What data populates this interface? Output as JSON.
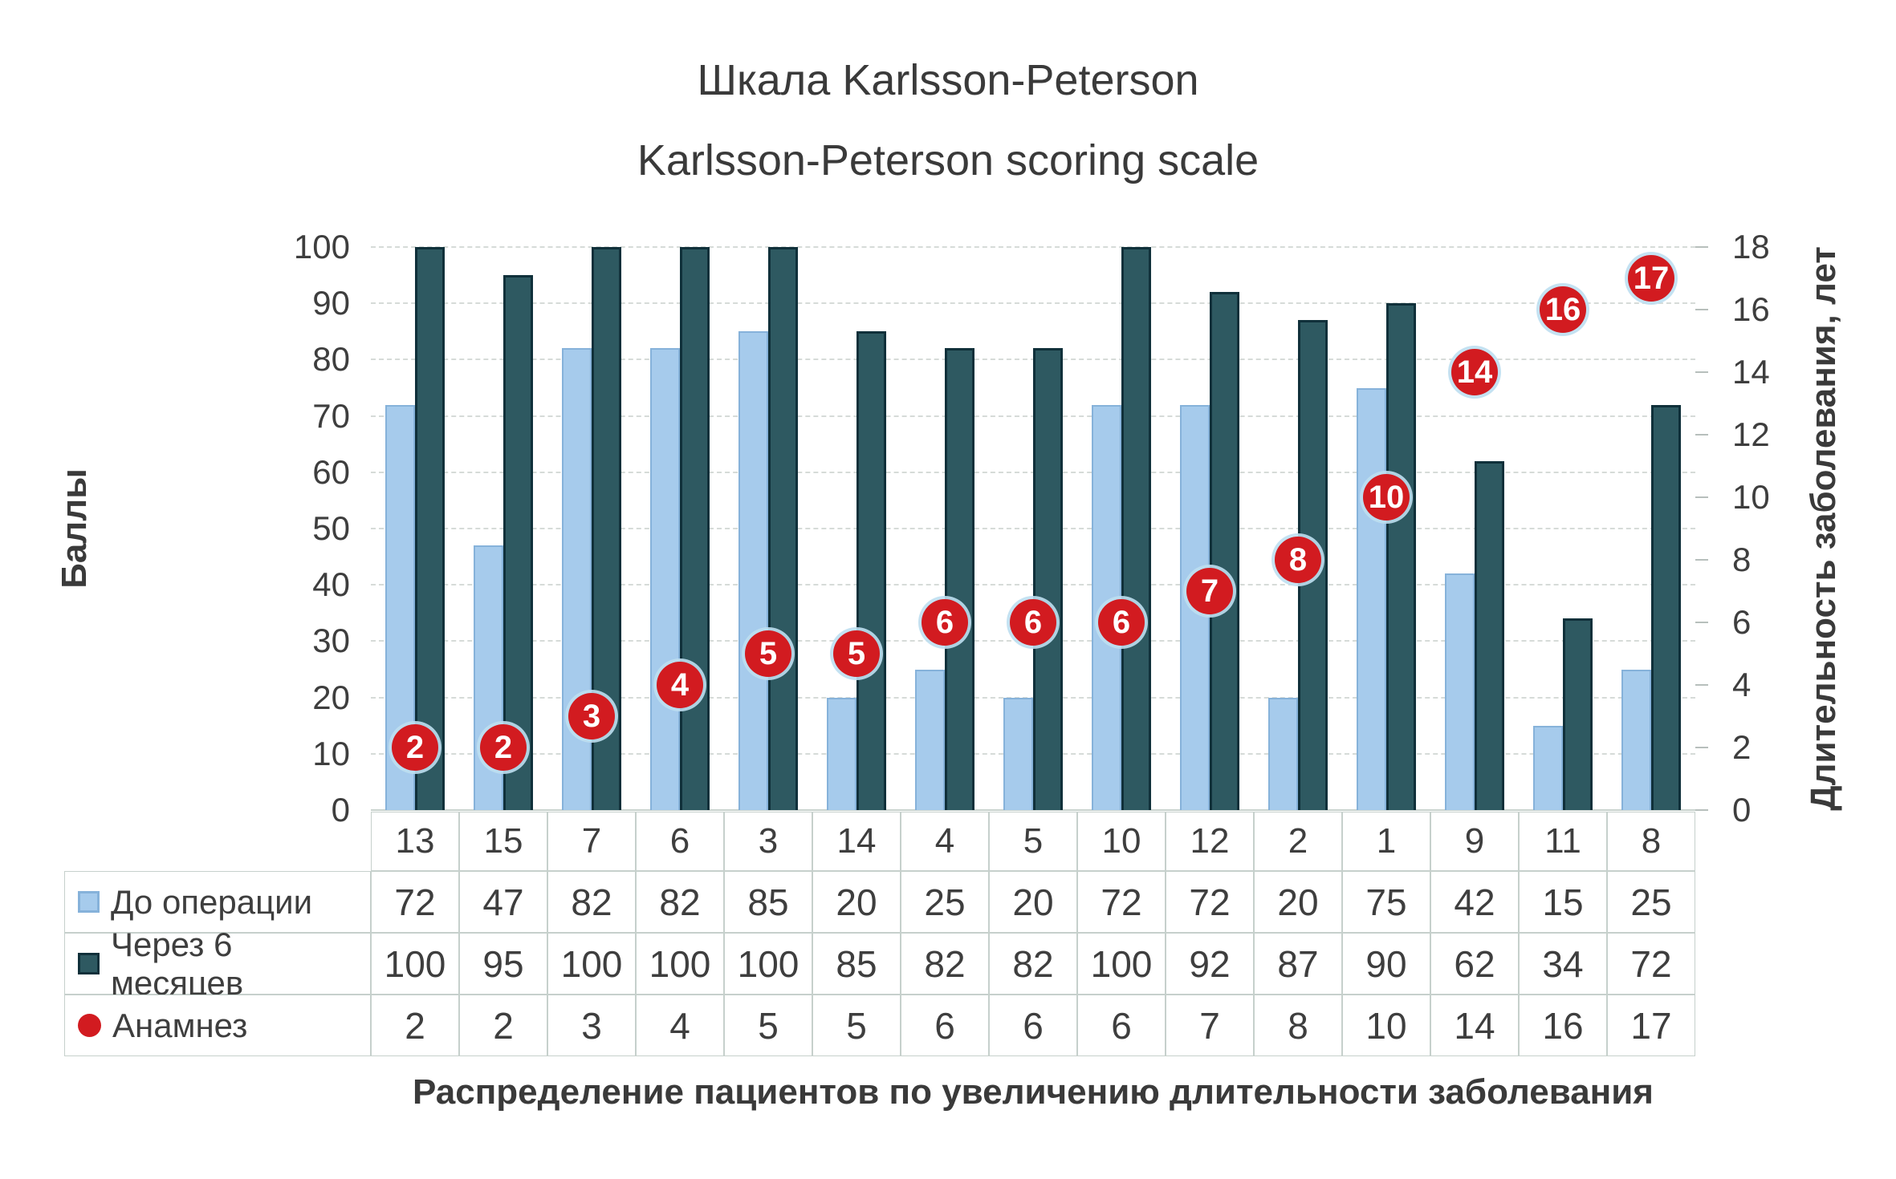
{
  "title": {
    "line1": "Шкала Karlsson-Peterson",
    "line2": "Karlsson-Peterson scoring scale"
  },
  "left_axis": {
    "title": "Баллы",
    "ticks": [
      100,
      90,
      80,
      70,
      60,
      50,
      40,
      30,
      20,
      10,
      0
    ],
    "min": 0,
    "max": 100
  },
  "right_axis": {
    "title": "Длительность заболевания, лет",
    "ticks": [
      18,
      16,
      14,
      12,
      10,
      8,
      6,
      4,
      2,
      0
    ],
    "min": 0,
    "max": 18
  },
  "chart_data": {
    "type": "bar",
    "title": "Шкала Karlsson-Peterson — Karlsson-Peterson scoring scale",
    "categories": [
      "13",
      "15",
      "7",
      "6",
      "3",
      "14",
      "4",
      "5",
      "10",
      "12",
      "2",
      "1",
      "9",
      "11",
      "8"
    ],
    "series": [
      {
        "name": "До операции",
        "type": "bar",
        "axis": "left",
        "color": "#a6cbec",
        "border_color": "#86b2da",
        "values": [
          72,
          47,
          82,
          82,
          85,
          20,
          25,
          20,
          72,
          72,
          20,
          75,
          42,
          15,
          25
        ]
      },
      {
        "name": "Через 6 месяцев",
        "type": "bar",
        "axis": "left",
        "color": "#2e5961",
        "border_color": "#10303a",
        "values": [
          100,
          95,
          100,
          100,
          100,
          85,
          82,
          82,
          100,
          92,
          87,
          90,
          62,
          34,
          72
        ]
      },
      {
        "name": "Анамнез",
        "type": "point",
        "axis": "right",
        "color": "#d21b20",
        "values": [
          2,
          2,
          3,
          4,
          5,
          5,
          6,
          6,
          6,
          7,
          8,
          10,
          14,
          16,
          17
        ]
      }
    ],
    "xlabel": "Распределение пациентов по увеличению длительности заболевания",
    "ylabel": "Баллы",
    "ylabel_right": "Длительность заболевания, лет",
    "ylim": [
      0,
      100
    ],
    "ylim_right": [
      0,
      18
    ],
    "grid": true,
    "legend_position": "table-left"
  },
  "colors": {
    "text": "#3e3e3e",
    "grid": "#d6dbd8",
    "table_border": "#c6d0cc",
    "marker_halo": "#bedff1",
    "background": "#ffffff"
  }
}
